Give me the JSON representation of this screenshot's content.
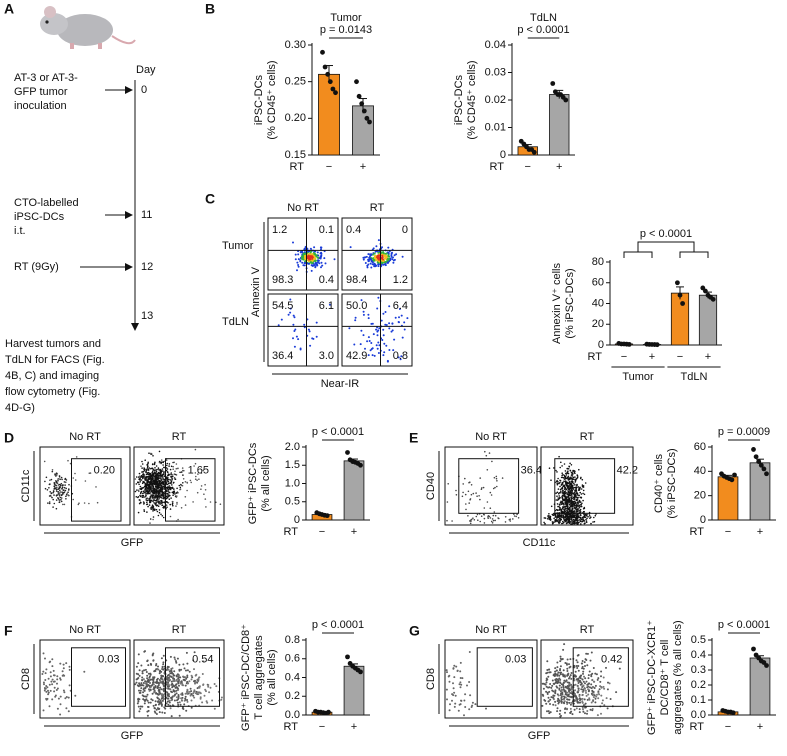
{
  "timeline": {
    "label": "A",
    "day_title": "Day",
    "events": [
      {
        "text": [
          "AT-3 or AT-3-",
          "GFP tumor",
          "inoculation"
        ],
        "day": "0"
      },
      {
        "text": [
          "CTO-labelled",
          "iPSC-DCs",
          "i.t."
        ],
        "day": "11"
      },
      {
        "text": [
          "RT (9Gy)"
        ],
        "day": "12"
      },
      {
        "text": [
          "Harvest tumors and",
          "TdLN for FACS (Fig.",
          "4B, C) and imaging",
          "flow cytometry (Fig.",
          "4D-G)"
        ],
        "day": "13"
      }
    ]
  },
  "flow_panels": [
    {
      "label": "C",
      "columns": [
        "No RT",
        "RT"
      ],
      "rows": [
        "Tumor",
        "TdLN"
      ],
      "y_label": "Annexin V",
      "x_label": "Near-IR",
      "plots": [
        [
          "1.2",
          "0.1",
          "98.3",
          "0.4"
        ],
        [
          "0.4",
          "0",
          "98.4",
          "1.2"
        ],
        [
          "54.5",
          "6.1",
          "36.4",
          "3.0"
        ],
        [
          "50.0",
          "6.4",
          "42.9",
          "0.8"
        ]
      ]
    },
    {
      "label": "D",
      "columns": [
        "No RT",
        "RT"
      ],
      "y_label": "CD11c",
      "x_label": "GFP",
      "plots": [
        [
          "0.20"
        ],
        [
          "1.65"
        ]
      ]
    },
    {
      "label": "E",
      "columns": [
        "No RT",
        "RT"
      ],
      "y_label": "CD40",
      "x_label": "CD11c",
      "plots": [
        [
          "36.4"
        ],
        [
          "42.2"
        ]
      ]
    },
    {
      "label": "F",
      "columns": [
        "No RT",
        "RT"
      ],
      "y_label": "CD8",
      "x_label": "GFP",
      "plots": [
        [
          "0.03"
        ],
        [
          "0.54"
        ]
      ]
    },
    {
      "label": "G",
      "columns": [
        "No RT",
        "RT"
      ],
      "y_label": "CD8",
      "x_label": "GFP",
      "plots": [
        [
          "0.03"
        ],
        [
          "0.42"
        ]
      ]
    }
  ],
  "chart_data": [
    {
      "type": "bar",
      "label": "B",
      "title": "Tumor",
      "ylabel": [
        "iPSC-DCs",
        "(% CD45⁺ cells)"
      ],
      "x_label": "RT",
      "categories": [
        "−",
        "+"
      ],
      "values": [
        0.26,
        0.217
      ],
      "errors": [
        0.012,
        0.01
      ],
      "colors": [
        "#f28c1e",
        "#a6a6a6"
      ],
      "points": [
        [
          0.29,
          0.27,
          0.26,
          0.25,
          0.24,
          0.235
        ],
        [
          0.25,
          0.23,
          0.22,
          0.21,
          0.2,
          0.195
        ]
      ],
      "ylim": [
        0.15,
        0.3
      ],
      "yticks": [
        0.15,
        {
          "value": 0.2,
          "label": "0.20"
        },
        0.25,
        {
          "value": 0.3,
          "label": "0.30"
        }
      ],
      "annotation": "p = 0.0143"
    },
    {
      "type": "bar",
      "title": "TdLN",
      "ylabel": [
        "iPSC-DCs",
        "(% CD45⁺ cells)"
      ],
      "x_label": "RT",
      "categories": [
        "−",
        "+"
      ],
      "values": [
        0.003,
        0.022
      ],
      "errors": [
        0.0008,
        0.0015
      ],
      "colors": [
        "#f28c1e",
        "#a6a6a6"
      ],
      "points": [
        [
          0.005,
          0.004,
          0.003,
          0.002,
          0.002,
          0.001
        ],
        [
          0.026,
          0.023,
          0.022,
          0.022,
          0.021,
          0.02
        ]
      ],
      "ylim": [
        0,
        0.04
      ],
      "yticks": [
        0,
        0.01,
        0.02,
        0.03,
        0.04
      ],
      "annotation": "p < 0.0001"
    },
    {
      "type": "bar",
      "ylabel": [
        "Annexin V⁺ cells",
        "(% iPSC-DCs)"
      ],
      "x_label": "RT",
      "categories": [
        "−",
        "+",
        "−",
        "+"
      ],
      "groups": [
        "Tumor",
        "TdLN"
      ],
      "values": [
        1,
        0.5,
        50,
        48
      ],
      "errors": [
        0.2,
        0.1,
        6,
        3
      ],
      "colors": [
        "#f28c1e",
        "#a6a6a6",
        "#f28c1e",
        "#a6a6a6"
      ],
      "points": [
        [
          1.5,
          1,
          1,
          0.8,
          0.6
        ],
        [
          0.8,
          0.6,
          0.5,
          0.4,
          0.3
        ],
        [
          60,
          48,
          40
        ],
        [
          55,
          52,
          48,
          46,
          44
        ]
      ],
      "ylim": [
        0,
        80
      ],
      "yticks": [
        0,
        20,
        40,
        60,
        80
      ],
      "annotation": "p < 0.0001"
    },
    {
      "type": "bar",
      "ylabel": [
        "GFP⁺ iPSC-DCs",
        "(% all cells)"
      ],
      "x_label": "RT",
      "categories": [
        "−",
        "+"
      ],
      "values": [
        0.15,
        1.62
      ],
      "errors": [
        0.02,
        0.05
      ],
      "colors": [
        "#f28c1e",
        "#a6a6a6"
      ],
      "points": [
        [
          0.2,
          0.17,
          0.15,
          0.13,
          0.12
        ],
        [
          1.85,
          1.65,
          1.6,
          1.58,
          1.55,
          1.5
        ]
      ],
      "ylim": [
        0,
        2
      ],
      "yticks": [
        0,
        0.5,
        {
          "value": 1,
          "label": "1.0"
        },
        1.5,
        {
          "value": 2,
          "label": "2.0"
        }
      ],
      "annotation": "p < 0.0001"
    },
    {
      "type": "bar",
      "ylabel": [
        "CD40⁺ cells",
        "(% iPSC-DCs)"
      ],
      "x_label": "RT",
      "categories": [
        "−",
        "+"
      ],
      "values": [
        35.5,
        47
      ],
      "errors": [
        1.2,
        3
      ],
      "colors": [
        "#f28c1e",
        "#a6a6a6"
      ],
      "points": [
        [
          38,
          36,
          35,
          34,
          33,
          37
        ],
        [
          58,
          52,
          48,
          45,
          42,
          38
        ]
      ],
      "ylim": [
        0,
        60
      ],
      "yticks": [
        0,
        20,
        40,
        60
      ],
      "annotation": "p = 0.0009"
    },
    {
      "type": "bar",
      "ylabel": [
        "GFP⁺ iPSC-DC/CD8⁺",
        "T cell aggregates",
        "(% all cells)"
      ],
      "x_label": "RT",
      "categories": [
        "−",
        "+"
      ],
      "values": [
        0.03,
        0.52
      ],
      "errors": [
        0.005,
        0.025
      ],
      "colors": [
        "#f28c1e",
        "#a6a6a6"
      ],
      "points": [
        [
          0.04,
          0.03,
          0.03,
          0.025,
          0.02,
          0.03
        ],
        [
          0.62,
          0.55,
          0.52,
          0.5,
          0.48,
          0.46
        ]
      ],
      "ylim": [
        0,
        0.8
      ],
      "yticks": [
        {
          "value": 0,
          "label": "0.0"
        },
        0.2,
        0.4,
        0.6,
        0.8
      ],
      "annotation": "p < 0.0001"
    },
    {
      "type": "bar",
      "ylabel": [
        "GFP⁺ iPSC-DC-XCR1⁺",
        "DC/CD8⁺ T cell",
        "aggregates (% all cells)"
      ],
      "x_label": "RT",
      "categories": [
        "−",
        "+"
      ],
      "values": [
        0.021,
        0.38
      ],
      "errors": [
        0.003,
        0.015
      ],
      "colors": [
        "#f28c1e",
        "#a6a6a6"
      ],
      "points": [
        [
          0.03,
          0.025,
          0.02,
          0.02,
          0.015
        ],
        [
          0.44,
          0.4,
          0.38,
          0.36,
          0.35,
          0.33
        ]
      ],
      "ylim": [
        0,
        0.5
      ],
      "yticks": [
        {
          "value": 0,
          "label": "0.0"
        },
        0.1,
        0.2,
        0.3,
        0.4,
        0.5
      ],
      "annotation": "p < 0.0001"
    }
  ]
}
